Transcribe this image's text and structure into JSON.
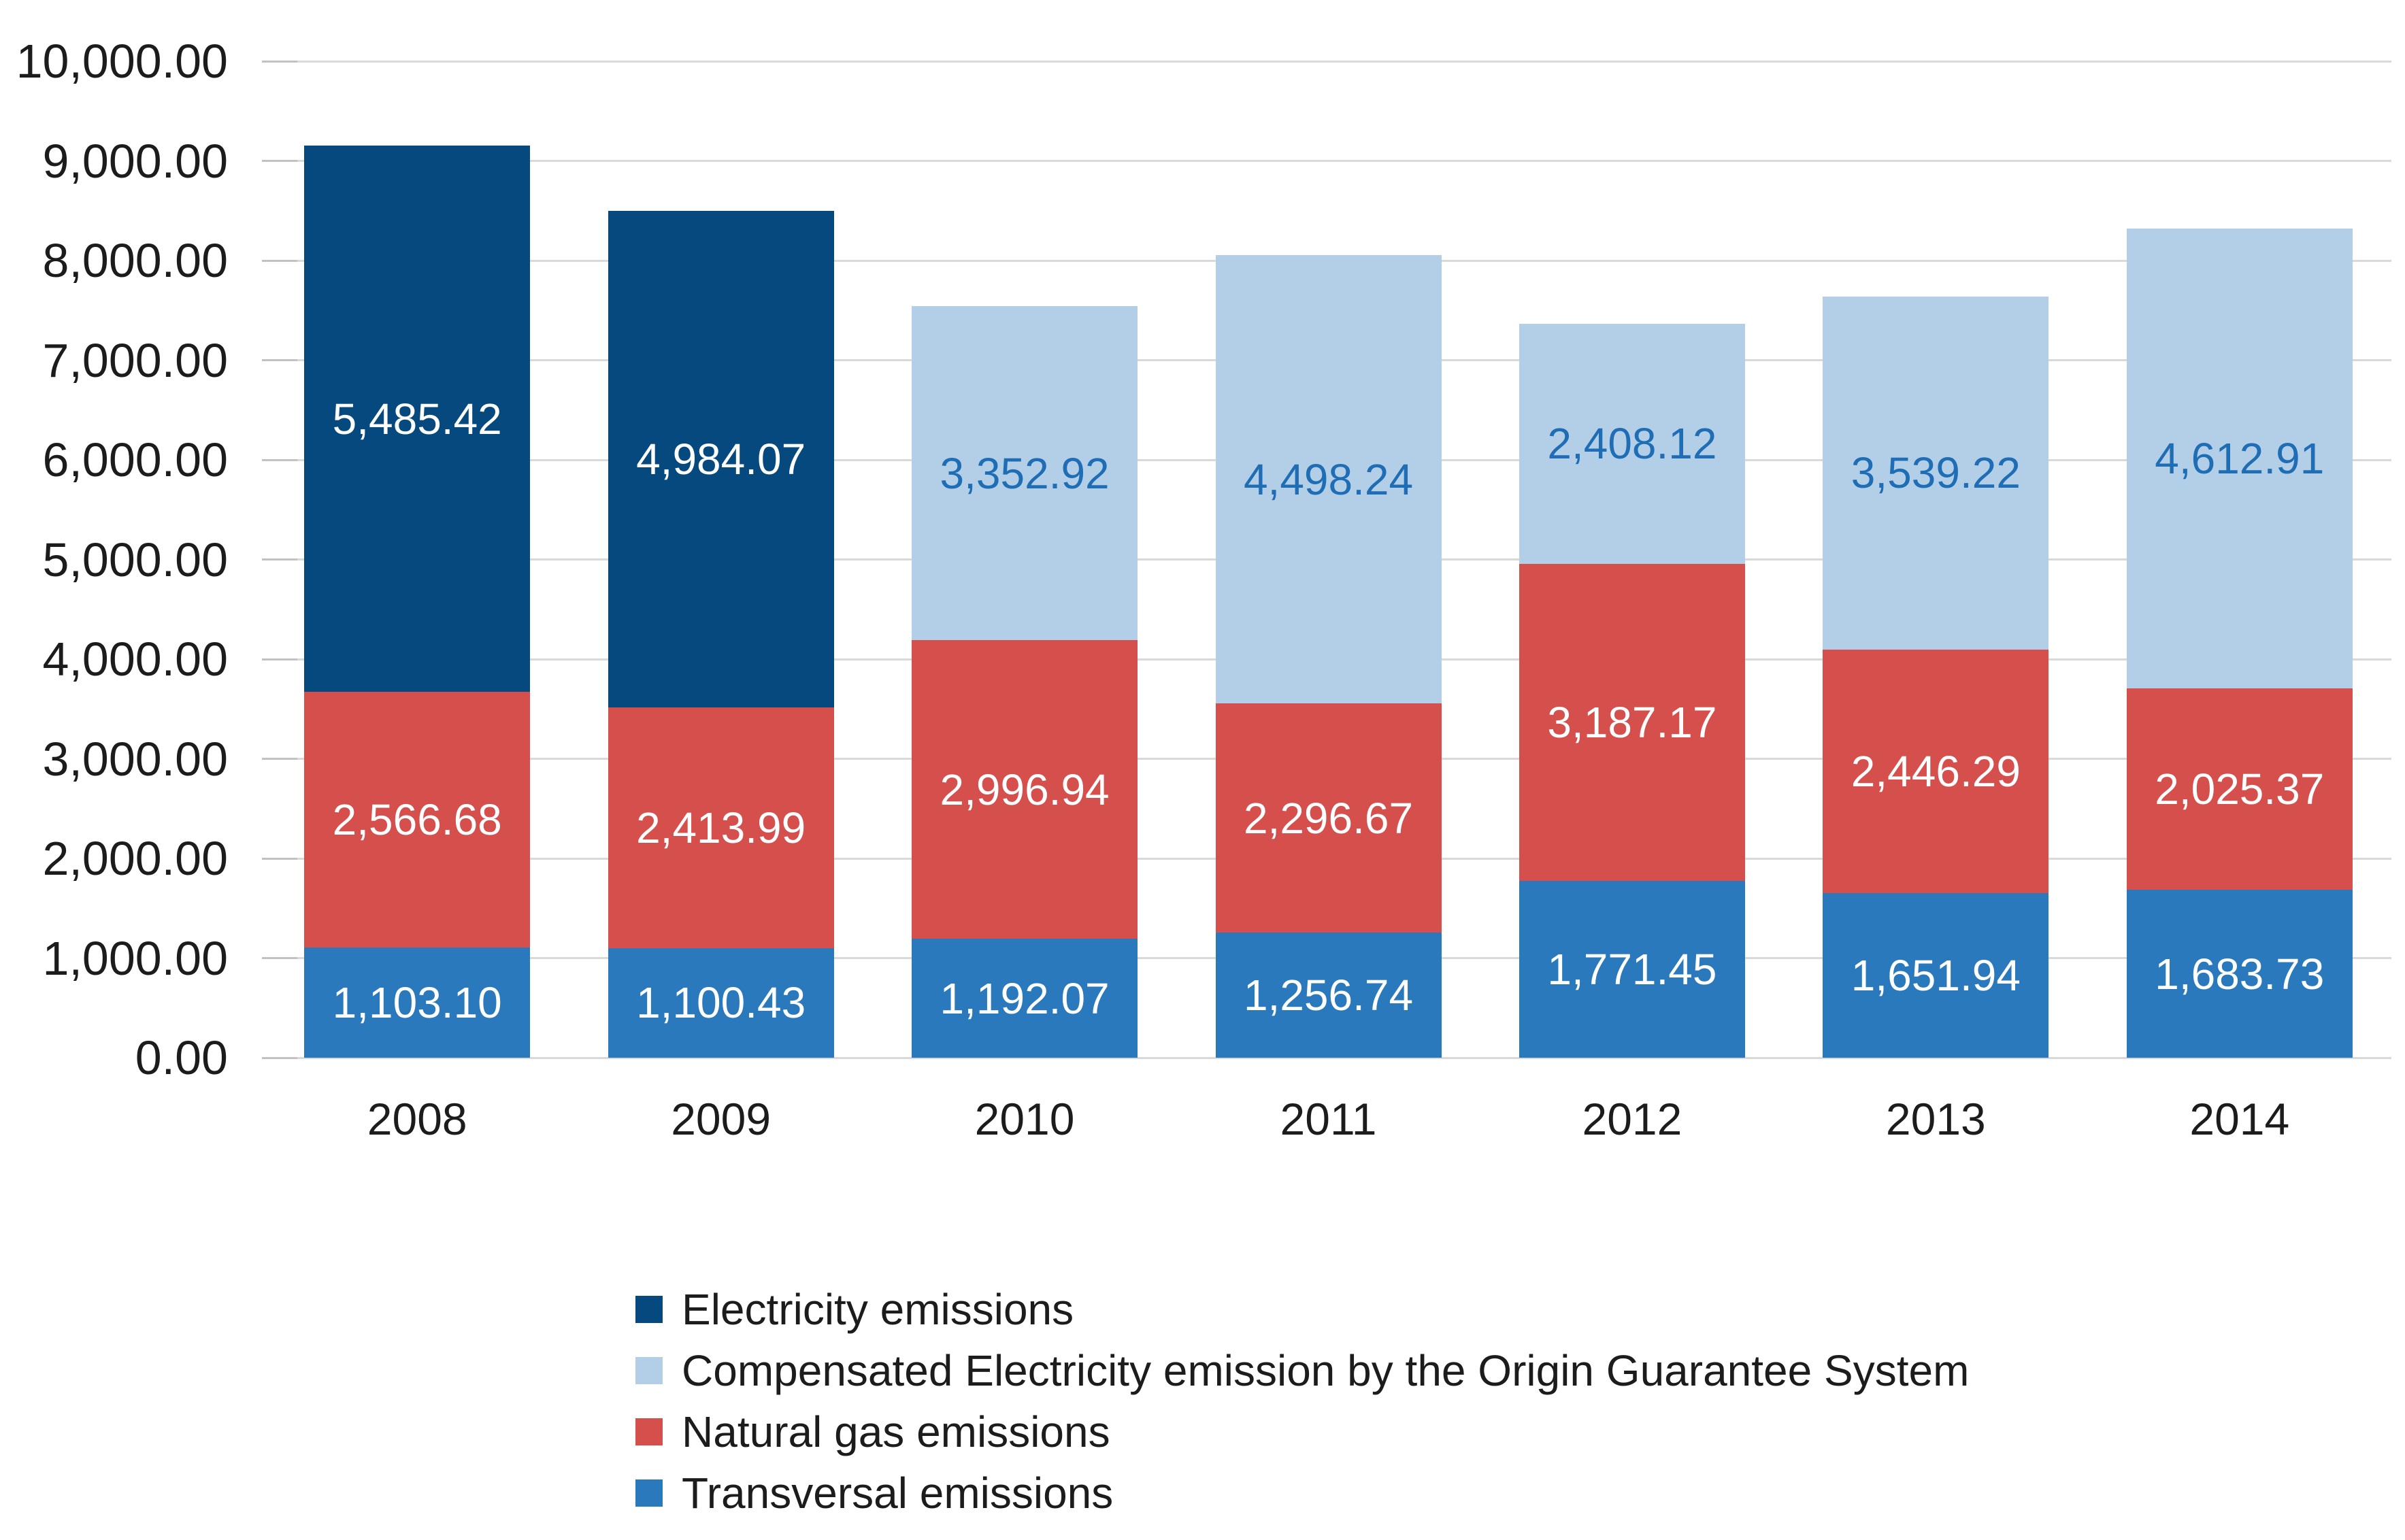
{
  "chart_data": {
    "type": "bar",
    "stacked": true,
    "title": "",
    "xlabel": "",
    "ylabel": "",
    "categories": [
      "2008",
      "2009",
      "2010",
      "2011",
      "2012",
      "2013",
      "2014"
    ],
    "series": [
      {
        "name": "Electricity emissions",
        "color": "#05497f",
        "label_color": "#ffffff",
        "values": [
          5485.42,
          4984.07,
          0,
          0,
          0,
          0,
          0
        ],
        "labels": [
          "5,485.42",
          "4,984.07",
          "",
          "",
          "",
          "",
          ""
        ]
      },
      {
        "name": "Compensated Electricity emission by the Origin Guarantee System",
        "color": "#b3cfe8",
        "label_color": "#1f6db4",
        "values": [
          0,
          0,
          3352.92,
          4498.24,
          2408.12,
          3539.22,
          4612.91
        ],
        "labels": [
          "",
          "",
          "3,352.92",
          "4,498.24",
          "2,408.12",
          "3,539.22",
          "4,612.91"
        ]
      },
      {
        "name": "Natural gas emissions",
        "color": "#d5504d",
        "label_color": "#ffffff",
        "values": [
          2566.68,
          2413.99,
          2996.94,
          2296.67,
          3187.17,
          2446.29,
          2025.37
        ],
        "labels": [
          "2,566.68",
          "2,413.99",
          "2,996.94",
          "2,296.67",
          "3,187.17",
          "2,446.29",
          "2,025.37"
        ]
      },
      {
        "name": "Transversal emissions",
        "color": "#2a79bd",
        "label_color": "#ffffff",
        "values": [
          1103.1,
          1100.43,
          1192.07,
          1256.74,
          1771.45,
          1651.94,
          1683.73
        ],
        "labels": [
          "1,103.10",
          "1,100.43",
          "1,192.07",
          "1,256.74",
          "1,771.45",
          "1,651.94",
          "1,683.73"
        ]
      }
    ],
    "stack_order_bottom_to_top": [
      "Transversal emissions",
      "Natural gas emissions",
      "Compensated Electricity emission by the Origin Guarantee System",
      "Electricity emissions"
    ],
    "y_axis": {
      "min": 0,
      "max": 10000,
      "step": 1000,
      "tick_labels": [
        "0.00",
        "1,000.00",
        "2,000.00",
        "3,000.00",
        "4,000.00",
        "5,000.00",
        "6,000.00",
        "7,000.00",
        "8,000.00",
        "9,000.00",
        "10,000.00"
      ]
    },
    "grid": true,
    "legend_position": "bottom-left",
    "colors": {
      "gridline": "#d9d9d9",
      "axis_text": "#1c1c1c",
      "background": "#ffffff"
    }
  }
}
